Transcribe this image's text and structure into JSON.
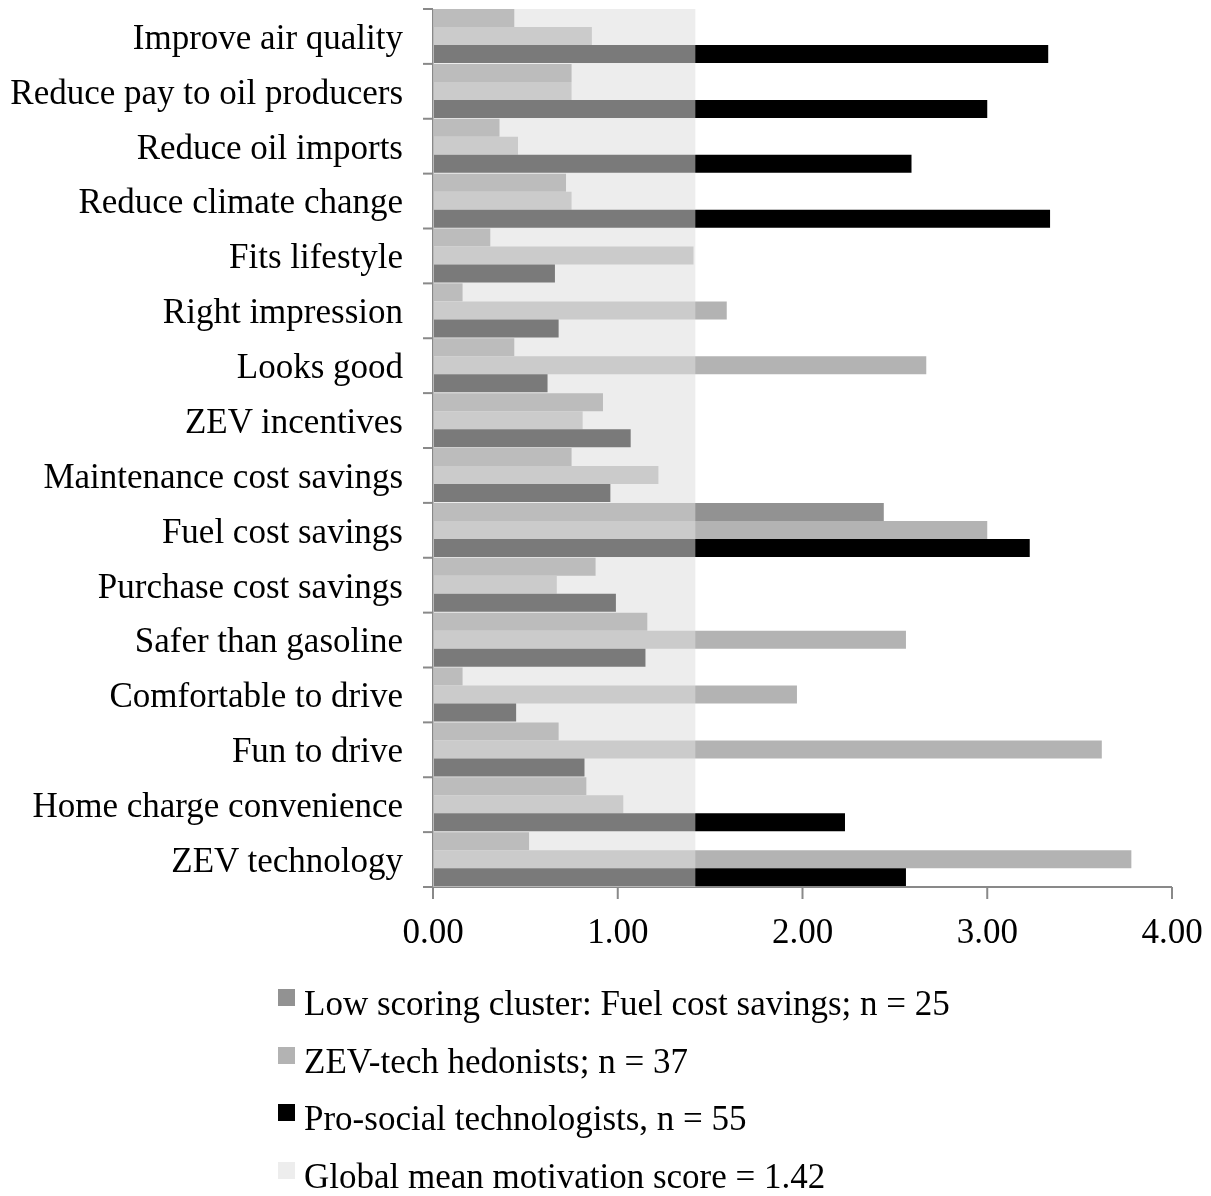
{
  "chart_data": {
    "type": "bar",
    "orientation": "horizontal",
    "categories": [
      "Improve air quality",
      "Reduce pay to oil producers",
      "Reduce oil imports",
      "Reduce climate change",
      "Fits lifestyle",
      "Right impression",
      "Looks good",
      "ZEV incentives",
      "Maintenance cost savings",
      "Fuel cost savings",
      "Purchase cost savings",
      "Safer than gasoline",
      "Comfortable to drive",
      "Fun to drive",
      "Home charge convenience",
      "ZEV technology"
    ],
    "series": [
      {
        "name": "Low scoring cluster: Fuel cost savings; n = 25",
        "color": "#929292",
        "values": [
          0.44,
          0.75,
          0.36,
          0.72,
          0.31,
          0.16,
          0.44,
          0.92,
          0.75,
          2.44,
          0.88,
          1.16,
          0.16,
          0.68,
          0.83,
          0.52
        ]
      },
      {
        "name": "ZEV-tech hedonists; n = 37",
        "color": "#b3b3b3",
        "values": [
          0.86,
          0.75,
          0.46,
          0.75,
          1.41,
          1.59,
          2.67,
          0.81,
          1.22,
          3.0,
          0.67,
          2.56,
          1.97,
          3.62,
          1.03,
          3.78
        ]
      },
      {
        "name": "Pro-social technologists, n = 55",
        "color": "#000000",
        "values": [
          3.33,
          3.0,
          2.59,
          3.34,
          0.66,
          0.68,
          0.62,
          1.07,
          0.96,
          3.23,
          0.99,
          1.15,
          0.45,
          0.82,
          2.23,
          2.56
        ]
      }
    ],
    "xlim": [
      0,
      4
    ],
    "xticks": [
      {
        "value": 0,
        "label": "0.00"
      },
      {
        "value": 1,
        "label": "1.00"
      },
      {
        "value": 2,
        "label": "2.00"
      },
      {
        "value": 3,
        "label": "3.00"
      },
      {
        "value": 4,
        "label": "4.00"
      }
    ],
    "bands": [
      {
        "axis": "x",
        "from": 0,
        "to": 1.42,
        "label": "Global mean motivation score = 1.42",
        "color": "#ededed"
      }
    ],
    "legend": "bottom"
  }
}
